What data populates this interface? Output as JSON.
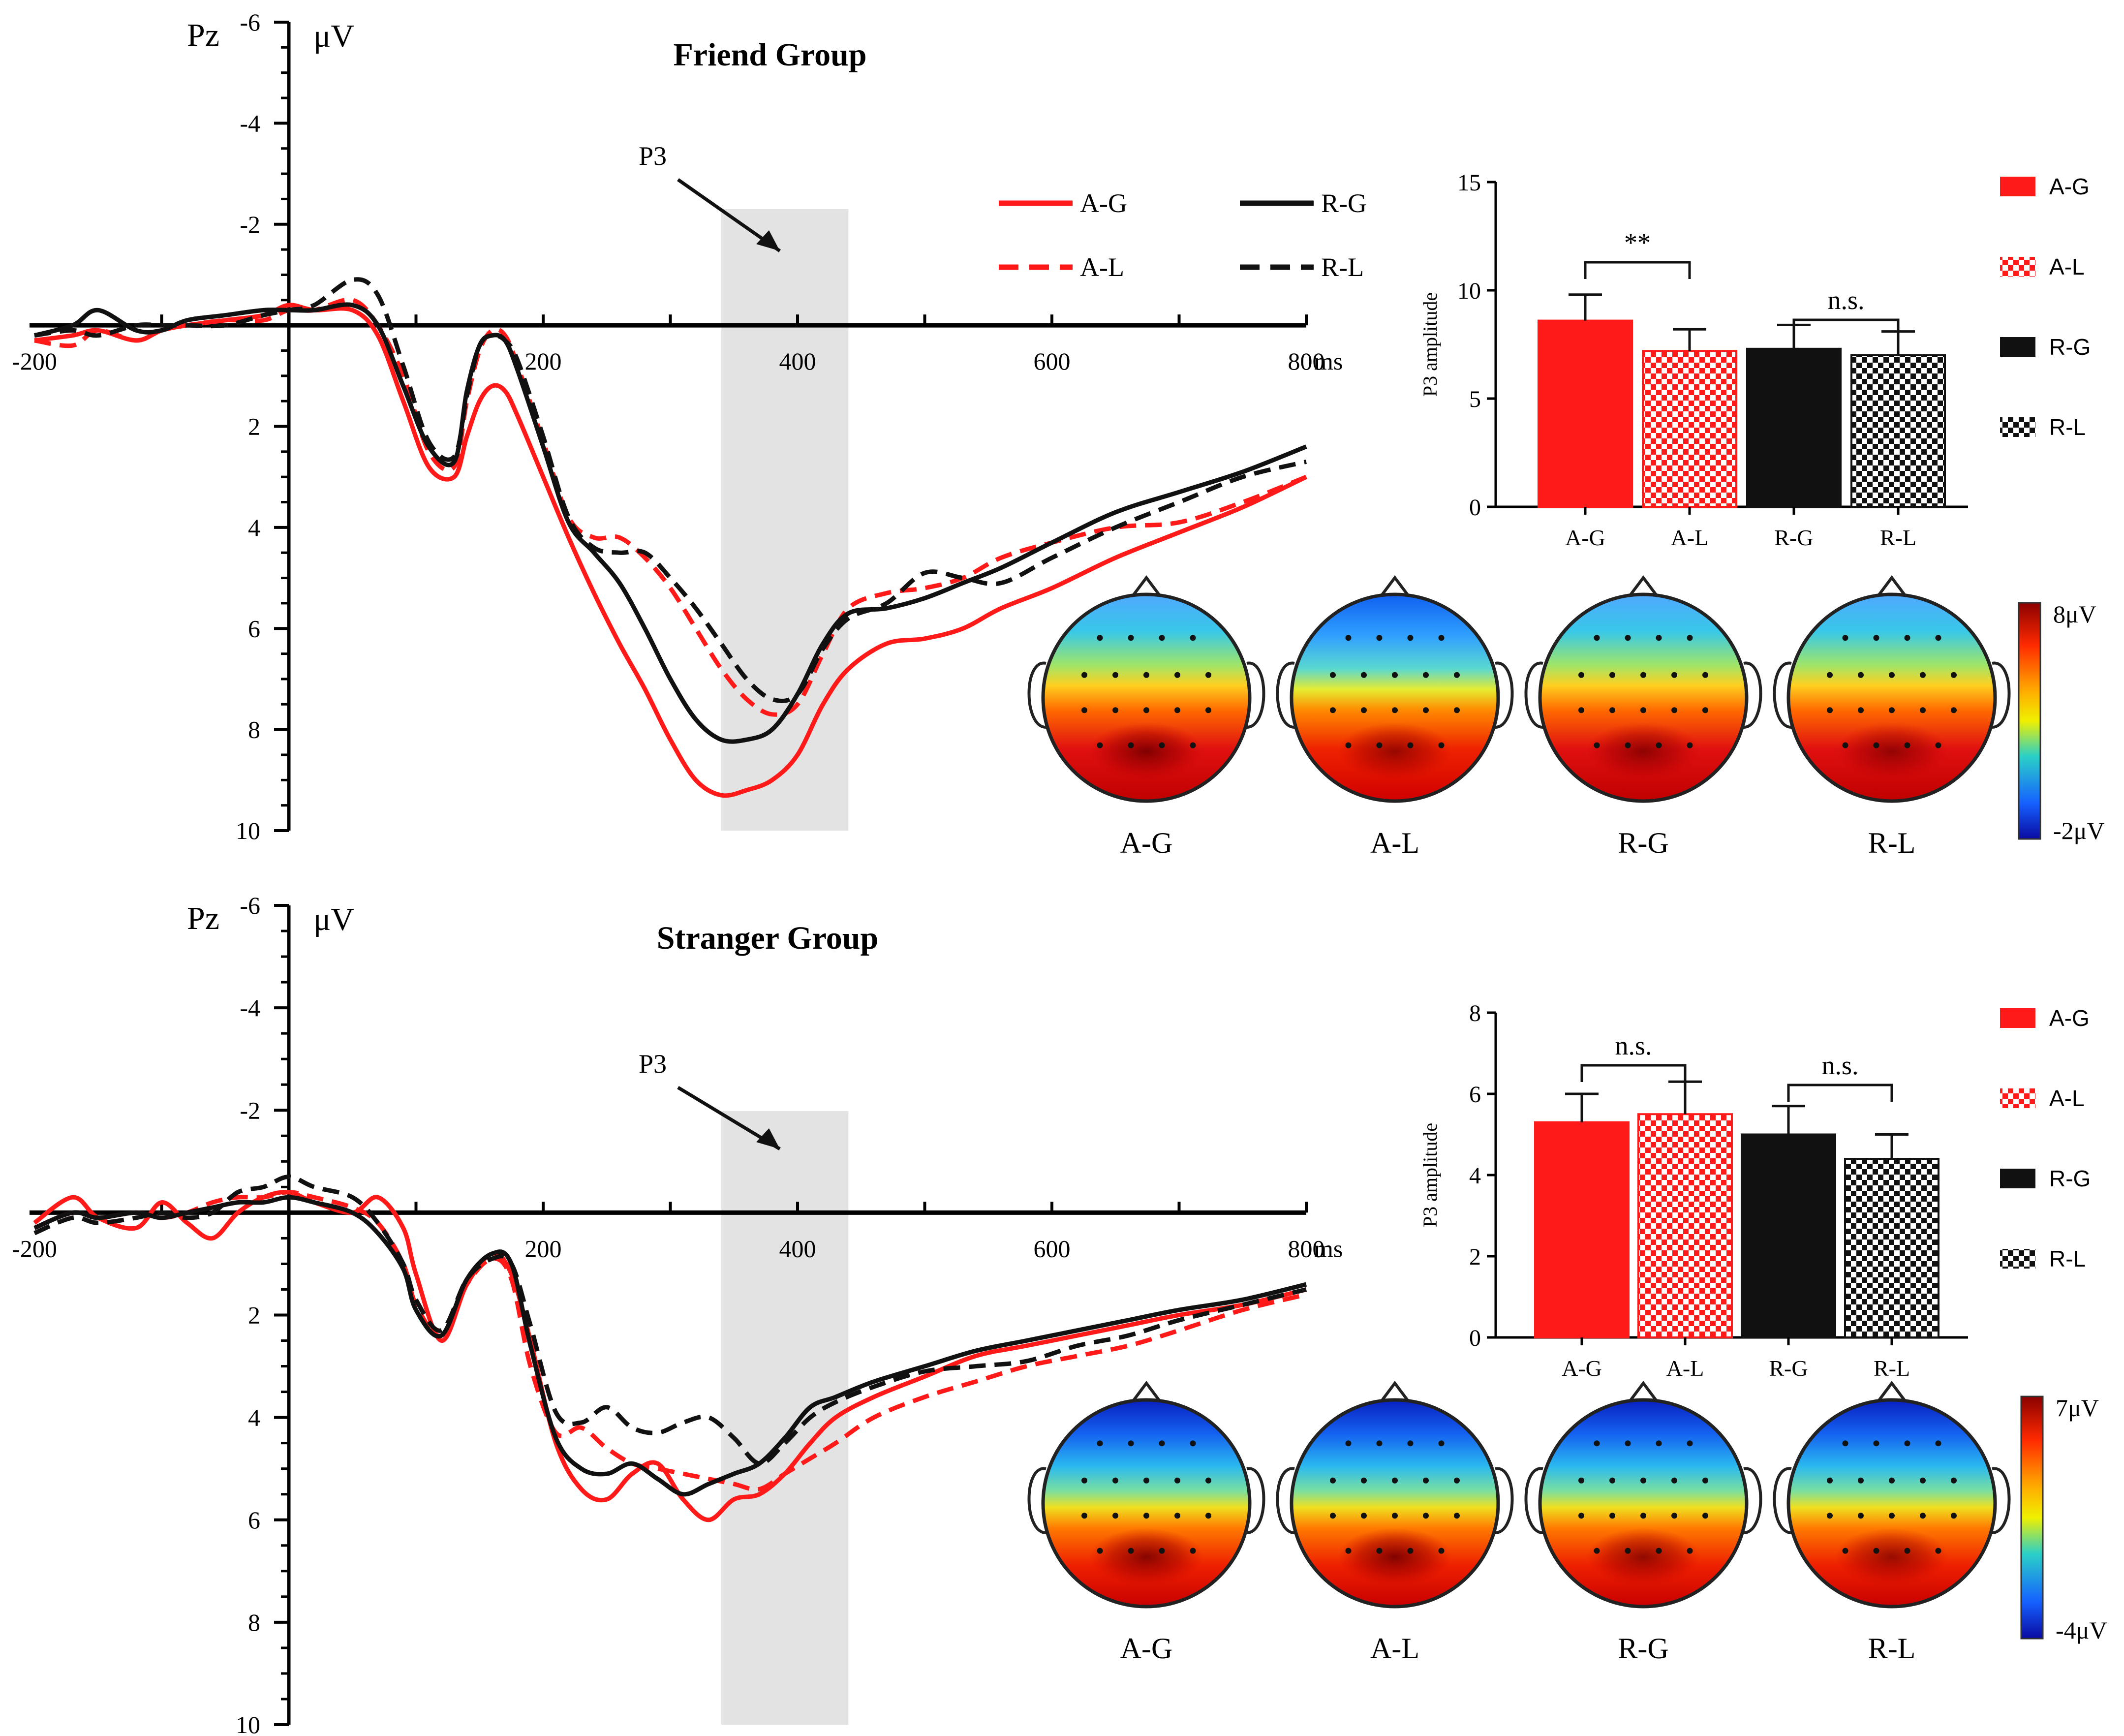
{
  "colors": {
    "red": "#ff1a1a",
    "black": "#111111",
    "shade": "#e3e3e3",
    "axis": "#000000"
  },
  "chart_data": [
    {
      "type": "line",
      "panel": "friend-erp",
      "title": "Friend Group",
      "channel": "Pz",
      "ylabel": "μV",
      "xlabel": "ms",
      "xlim": [
        -200,
        800
      ],
      "ylim": [
        -6,
        10
      ],
      "y_inverted": true,
      "x_ticks": [
        -200,
        200,
        400,
        600,
        800
      ],
      "x_tick_labels": [
        "-200",
        "200",
        "400",
        "600",
        "800"
      ],
      "x_unit_label": "ms",
      "y_ticks": [
        -6,
        -4,
        -2,
        2,
        4,
        6,
        8,
        10
      ],
      "y_tick_labels": [
        "-6",
        "-4",
        "-2",
        "2",
        "4",
        "6",
        "8",
        "10"
      ],
      "window": {
        "label": "P3",
        "from": 340,
        "to": 440
      },
      "series": [
        {
          "name": "A-G",
          "color": "red",
          "dash": false,
          "x": [
            -200,
            -170,
            -150,
            -120,
            -100,
            -80,
            -50,
            -20,
            0,
            20,
            50,
            70,
            90,
            110,
            130,
            140,
            150,
            160,
            170,
            180,
            200,
            220,
            240,
            260,
            280,
            300,
            320,
            340,
            360,
            380,
            400,
            420,
            440,
            470,
            500,
            530,
            560,
            600,
            650,
            700,
            750,
            800
          ],
          "y": [
            0.3,
            0.2,
            0.1,
            0.3,
            0.1,
            0.0,
            -0.1,
            -0.2,
            -0.4,
            -0.3,
            -0.3,
            0.2,
            1.5,
            2.8,
            3.0,
            2.2,
            1.5,
            1.2,
            1.3,
            1.8,
            3.0,
            4.2,
            5.3,
            6.3,
            7.2,
            8.2,
            9.0,
            9.3,
            9.2,
            9.0,
            8.5,
            7.5,
            6.8,
            6.3,
            6.2,
            6.0,
            5.6,
            5.2,
            4.6,
            4.1,
            3.6,
            3.0
          ]
        },
        {
          "name": "A-L",
          "color": "red",
          "dash": true,
          "x": [
            -200,
            -170,
            -150,
            -120,
            -100,
            -80,
            -50,
            -20,
            0,
            20,
            50,
            70,
            90,
            110,
            130,
            140,
            150,
            160,
            170,
            180,
            200,
            220,
            240,
            260,
            280,
            300,
            320,
            340,
            360,
            380,
            400,
            420,
            440,
            470,
            500,
            530,
            560,
            600,
            650,
            700,
            750,
            800
          ],
          "y": [
            0.3,
            0.4,
            0.1,
            0.3,
            0.1,
            0.0,
            -0.1,
            -0.1,
            -0.3,
            -0.3,
            -0.5,
            0.0,
            1.0,
            2.5,
            2.8,
            1.5,
            0.5,
            0.1,
            0.2,
            0.8,
            2.3,
            3.8,
            4.2,
            4.2,
            4.6,
            5.2,
            6.0,
            6.8,
            7.4,
            7.7,
            7.5,
            6.5,
            5.6,
            5.3,
            5.2,
            5.0,
            4.6,
            4.3,
            4.0,
            3.9,
            3.5,
            3.0
          ]
        },
        {
          "name": "R-G",
          "color": "black",
          "dash": false,
          "x": [
            -200,
            -170,
            -150,
            -120,
            -100,
            -80,
            -50,
            -20,
            0,
            20,
            50,
            70,
            90,
            110,
            130,
            140,
            150,
            160,
            170,
            180,
            200,
            220,
            240,
            260,
            280,
            300,
            320,
            340,
            360,
            380,
            400,
            420,
            440,
            470,
            500,
            530,
            560,
            600,
            650,
            700,
            750,
            800
          ],
          "y": [
            0.2,
            0.0,
            -0.3,
            0.1,
            0.1,
            -0.1,
            -0.2,
            -0.3,
            -0.3,
            -0.3,
            -0.4,
            0.0,
            1.2,
            2.4,
            2.7,
            1.3,
            0.4,
            0.2,
            0.3,
            0.9,
            2.4,
            3.9,
            4.5,
            5.1,
            6.0,
            7.0,
            7.8,
            8.2,
            8.2,
            8.0,
            7.3,
            6.3,
            5.7,
            5.6,
            5.4,
            5.1,
            4.8,
            4.3,
            3.7,
            3.3,
            2.9,
            2.4
          ]
        },
        {
          "name": "R-L",
          "color": "black",
          "dash": true,
          "x": [
            -200,
            -170,
            -150,
            -120,
            -100,
            -80,
            -50,
            -20,
            0,
            20,
            50,
            70,
            90,
            110,
            130,
            140,
            150,
            160,
            170,
            180,
            200,
            220,
            240,
            260,
            280,
            300,
            320,
            340,
            360,
            380,
            400,
            420,
            440,
            470,
            500,
            530,
            560,
            600,
            650,
            700,
            750,
            800
          ],
          "y": [
            0.2,
            0.1,
            0.2,
            0.0,
            0.0,
            0.0,
            0.0,
            -0.2,
            -0.3,
            -0.4,
            -0.9,
            -0.6,
            0.8,
            2.3,
            2.6,
            1.4,
            0.4,
            0.2,
            0.3,
            0.7,
            2.2,
            3.8,
            4.4,
            4.5,
            4.5,
            5.0,
            5.6,
            6.3,
            7.0,
            7.4,
            7.3,
            6.4,
            5.8,
            5.5,
            4.9,
            5.0,
            5.1,
            4.6,
            4.0,
            3.5,
            3.0,
            2.7
          ]
        }
      ]
    },
    {
      "type": "bar",
      "panel": "friend-bars",
      "ylabel": "P3 amplitude",
      "ylim": [
        0,
        15
      ],
      "y_ticks": [
        0,
        5,
        10,
        15
      ],
      "categories": [
        "A-G",
        "A-L",
        "R-G",
        "R-L"
      ],
      "values": [
        8.6,
        7.2,
        7.3,
        7.0
      ],
      "errors": [
        1.2,
        1.0,
        1.1,
        1.1
      ],
      "patterns": [
        "solid-red",
        "check-red",
        "solid-black",
        "check-black"
      ],
      "comparisons": [
        {
          "pair": [
            "A-G",
            "A-L"
          ],
          "label": "**"
        },
        {
          "pair": [
            "R-G",
            "R-L"
          ],
          "label": "n.s."
        }
      ],
      "legend": [
        "A-G",
        "A-L",
        "R-G",
        "R-L"
      ]
    },
    {
      "type": "heatmap",
      "panel": "friend-topo",
      "maps": [
        "A-G",
        "A-L",
        "R-G",
        "R-L"
      ],
      "intensity": [
        1.0,
        0.8,
        0.85,
        0.8
      ],
      "colorbar": {
        "max_label": "8μV",
        "min_label": "-2μV",
        "max": 8,
        "min": -2
      }
    },
    {
      "type": "line",
      "panel": "stranger-erp",
      "title": "Stranger Group",
      "channel": "Pz",
      "ylabel": "μV",
      "xlabel": "ms",
      "xlim": [
        -200,
        800
      ],
      "ylim": [
        -6,
        10
      ],
      "y_inverted": true,
      "x_ticks": [
        -200,
        200,
        400,
        600,
        800
      ],
      "x_tick_labels": [
        "-200",
        "200",
        "400",
        "600",
        "800"
      ],
      "x_unit_label": "ms",
      "y_ticks": [
        -6,
        -4,
        -2,
        2,
        4,
        6,
        8,
        10
      ],
      "y_tick_labels": [
        "-6",
        "-4",
        "-2",
        "2",
        "4",
        "6",
        "8",
        "10"
      ],
      "window": {
        "label": "P3",
        "from": 340,
        "to": 440
      },
      "series": [
        {
          "name": "A-G",
          "color": "red",
          "dash": false,
          "x": [
            -200,
            -170,
            -150,
            -120,
            -100,
            -80,
            -60,
            -40,
            -20,
            0,
            20,
            50,
            70,
            90,
            100,
            120,
            140,
            160,
            175,
            190,
            210,
            230,
            250,
            270,
            290,
            310,
            330,
            350,
            370,
            390,
            410,
            430,
            460,
            500,
            540,
            580,
            620,
            660,
            700,
            750,
            800
          ],
          "y": [
            0.2,
            -0.3,
            0.1,
            0.3,
            -0.2,
            0.2,
            0.5,
            0.0,
            -0.3,
            -0.4,
            -0.2,
            0.0,
            -0.3,
            0.3,
            1.2,
            2.5,
            1.4,
            0.8,
            1.2,
            2.5,
            4.5,
            5.4,
            5.6,
            5.1,
            4.9,
            5.6,
            6.0,
            5.6,
            5.5,
            5.1,
            4.5,
            4.0,
            3.6,
            3.2,
            2.8,
            2.6,
            2.4,
            2.2,
            2.0,
            1.8,
            1.5
          ]
        },
        {
          "name": "A-L",
          "color": "red",
          "dash": true,
          "x": [
            -200,
            -170,
            -150,
            -120,
            -100,
            -80,
            -60,
            -40,
            -20,
            0,
            20,
            50,
            70,
            90,
            100,
            120,
            140,
            160,
            175,
            190,
            210,
            230,
            250,
            270,
            290,
            310,
            330,
            350,
            370,
            390,
            410,
            430,
            460,
            500,
            540,
            580,
            620,
            660,
            700,
            750,
            800
          ],
          "y": [
            0.3,
            0.0,
            0.1,
            0.0,
            0.1,
            0.0,
            -0.2,
            -0.3,
            -0.3,
            -0.4,
            -0.3,
            -0.1,
            0.2,
            1.0,
            1.8,
            2.4,
            1.4,
            0.9,
            1.3,
            3.0,
            4.3,
            4.2,
            4.6,
            4.9,
            5.0,
            5.1,
            5.2,
            5.3,
            5.4,
            5.1,
            4.8,
            4.5,
            4.0,
            3.6,
            3.3,
            3.0,
            2.8,
            2.6,
            2.3,
            1.9,
            1.6
          ]
        },
        {
          "name": "R-G",
          "color": "black",
          "dash": false,
          "x": [
            -200,
            -170,
            -150,
            -120,
            -100,
            -80,
            -60,
            -40,
            -20,
            0,
            20,
            50,
            70,
            90,
            100,
            120,
            140,
            160,
            175,
            190,
            210,
            230,
            250,
            270,
            290,
            310,
            330,
            350,
            370,
            390,
            410,
            430,
            460,
            500,
            540,
            580,
            620,
            660,
            700,
            750,
            800
          ],
          "y": [
            0.3,
            0.0,
            0.1,
            0.0,
            0.1,
            0.0,
            -0.1,
            -0.2,
            -0.2,
            -0.3,
            -0.2,
            0.0,
            0.4,
            1.1,
            1.9,
            2.4,
            1.3,
            0.8,
            1.0,
            2.6,
            4.4,
            5.0,
            5.1,
            4.9,
            5.2,
            5.5,
            5.3,
            5.1,
            4.9,
            4.4,
            3.8,
            3.6,
            3.3,
            3.0,
            2.7,
            2.5,
            2.3,
            2.1,
            1.9,
            1.7,
            1.4
          ]
        },
        {
          "name": "R-L",
          "color": "black",
          "dash": true,
          "x": [
            -200,
            -170,
            -150,
            -120,
            -100,
            -80,
            -60,
            -40,
            -20,
            0,
            20,
            50,
            70,
            90,
            100,
            120,
            140,
            160,
            175,
            190,
            210,
            230,
            250,
            270,
            290,
            310,
            330,
            350,
            370,
            390,
            410,
            430,
            460,
            500,
            540,
            580,
            620,
            660,
            700,
            750,
            800
          ],
          "y": [
            0.4,
            0.1,
            0.2,
            0.1,
            0.0,
            0.1,
            0.0,
            -0.4,
            -0.5,
            -0.7,
            -0.5,
            -0.3,
            0.2,
            1.0,
            1.7,
            2.3,
            1.3,
            0.9,
            1.0,
            2.2,
            3.9,
            4.1,
            3.8,
            4.2,
            4.3,
            4.1,
            4.0,
            4.4,
            4.9,
            4.5,
            4.0,
            3.7,
            3.4,
            3.1,
            3.0,
            2.9,
            2.6,
            2.4,
            2.1,
            1.8,
            1.5
          ]
        }
      ]
    },
    {
      "type": "bar",
      "panel": "stranger-bars",
      "ylabel": "P3 amplitude",
      "ylim": [
        0,
        8
      ],
      "y_ticks": [
        0,
        2,
        4,
        6,
        8
      ],
      "categories": [
        "A-G",
        "A-L",
        "R-G",
        "R-L"
      ],
      "values": [
        5.3,
        5.5,
        5.0,
        4.4
      ],
      "errors": [
        0.7,
        0.8,
        0.7,
        0.6
      ],
      "patterns": [
        "solid-red",
        "check-red",
        "solid-black",
        "check-black"
      ],
      "comparisons": [
        {
          "pair": [
            "A-G",
            "A-L"
          ],
          "label": "n.s."
        },
        {
          "pair": [
            "R-G",
            "R-L"
          ],
          "label": "n.s."
        }
      ],
      "legend": [
        "A-G",
        "A-L",
        "R-G",
        "R-L"
      ]
    },
    {
      "type": "heatmap",
      "panel": "stranger-topo",
      "maps": [
        "A-G",
        "A-L",
        "R-G",
        "R-L"
      ],
      "intensity": [
        0.95,
        1.0,
        0.85,
        0.8
      ],
      "colorbar": {
        "max_label": "7μV",
        "min_label": "-4μV",
        "max": 7,
        "min": -4
      }
    }
  ]
}
